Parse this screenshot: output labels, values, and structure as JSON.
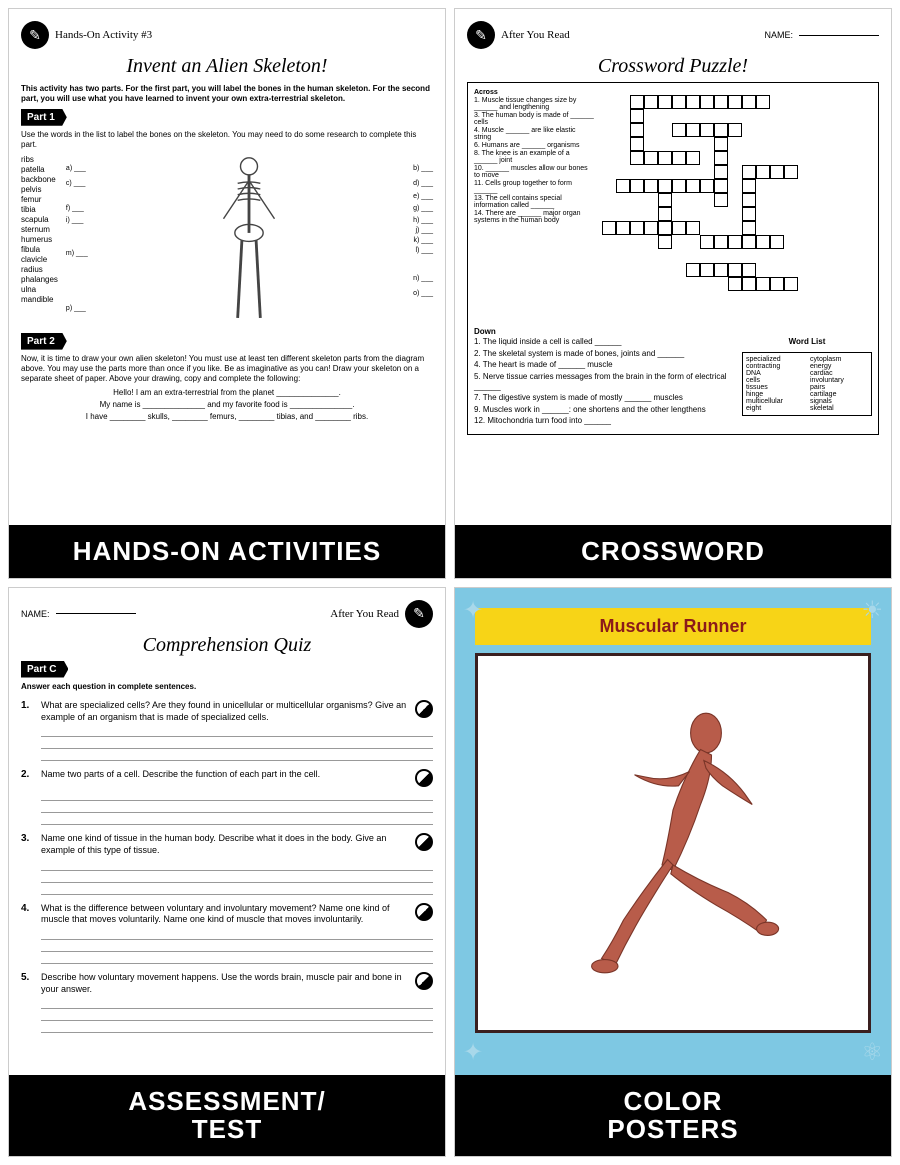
{
  "panel1": {
    "headerIcon": "✎",
    "headerSmall": "Hands-On Activity #3",
    "title": "Invent an Alien Skeleton!",
    "intro": "This activity has two parts. For the first part, you will label the bones in the human skeleton. For the second part, you will use what you have learned to invent your own extra-terrestrial skeleton.",
    "part1": "Part 1",
    "part1Text": "Use the words in the list to label the bones on the skeleton. You may need to do some research to complete this part.",
    "words": [
      "ribs",
      "patella",
      "backbone",
      "pelvis",
      "femur",
      "tibia",
      "scapula",
      "sternum",
      "humerus",
      "fibula",
      "clavicle",
      "radius",
      "phalanges",
      "ulna",
      "mandible"
    ],
    "labels": [
      "a)",
      "b)",
      "c)",
      "d)",
      "e)",
      "f)",
      "g)",
      "h)",
      "i)",
      "j)",
      "k)",
      "l)",
      "m)",
      "n)",
      "o)",
      "p)"
    ],
    "part2": "Part 2",
    "part2Text": "Now, it is time to draw your own alien skeleton! You must use at least ten different skeleton parts from the diagram above. You may use the parts more than once if you like. Be as imaginative as you can! Draw your skeleton on a separate sheet of paper. Above your drawing, copy and complete the following:",
    "fill1": "Hello! I am an extra-terrestrial from the planet ______________.",
    "fill2": "My name is ______________ and my favorite food is ______________.",
    "fill3": "I have ________ skulls, ________ femurs, ________ tibias, and ________ ribs.",
    "footer": "HANDS-ON ACTIVITIES"
  },
  "panel2": {
    "headerIcon": "✎",
    "headerSmall": "After You Read",
    "nameLabel": "NAME:",
    "title": "Crossword Puzzle!",
    "across": "Across",
    "down": "Down",
    "acrossClues": [
      "1. Muscle tissue changes size by ______ and lengthening",
      "3. The human body is made of ______ cells",
      "4. Muscle ______ are like elastic string",
      "6. Humans are ______ organisms",
      "8. The knee is an example of a ______ joint",
      "10. ______ muscles allow our bones to move",
      "11. Cells group together to form ______",
      "13. The cell contains special information called ______",
      "14. There are ______ major organ systems in the human body"
    ],
    "downClues": [
      "1. The liquid inside a cell is called ______",
      "2. The skeletal system is made of bones, joints and ______",
      "4. The heart is made of ______ muscle",
      "5. Nerve tissue carries messages from the brain in the form of electrical ______",
      "7. The digestive system is made of mostly ______ muscles",
      "9. Muscles work in ______: one shortens and the other lengthens",
      "12. Mitochondria turn food into ______"
    ],
    "wordListTitle": "Word List",
    "wordList": [
      "specialized",
      "contracting",
      "DNA",
      "cells",
      "tissues",
      "hinge",
      "multicellular",
      "eight",
      "cytoplasm",
      "energy",
      "cardiac",
      "involuntary",
      "pairs",
      "cartilage",
      "signals",
      "skeletal"
    ],
    "footer": "CROSSWORD"
  },
  "panel3": {
    "nameLabel": "NAME:",
    "headerSmall": "After You Read",
    "headerIcon": "✎",
    "title": "Comprehension Quiz",
    "partC": "Part C",
    "instr": "Answer each question in complete sentences.",
    "q": [
      {
        "n": "1.",
        "t": "What are specialized cells? Are they found in unicellular or multicellular organisms? Give an example of an organism that is made of specialized cells.",
        "s": "3"
      },
      {
        "n": "2.",
        "t": "Name two parts of a cell. Describe the function of each part in the cell.",
        "s": "4"
      },
      {
        "n": "3.",
        "t": "Name one kind of tissue in the human body. Describe what it does in the body. Give an example of this type of tissue.",
        "s": "3"
      },
      {
        "n": "4.",
        "t": "What is the difference between voluntary and involuntary movement? Name one kind of muscle that moves voluntarily. Name one kind of muscle that moves involuntarily.",
        "s": "4"
      },
      {
        "n": "5.",
        "t": "Describe how voluntary movement happens. Use the words brain, muscle pair and bone in your answer.",
        "s": "4"
      }
    ],
    "footer": "ASSESSMENT/\nTEST"
  },
  "panel4": {
    "title": "Muscular Runner",
    "footer": "COLOR\nPOSTERS",
    "colors": {
      "bg": "#7ec8e3",
      "bar": "#f7d417",
      "barText": "#8b1a1a",
      "frame": "#3a1f1f",
      "muscle": "#b85c4a"
    }
  }
}
